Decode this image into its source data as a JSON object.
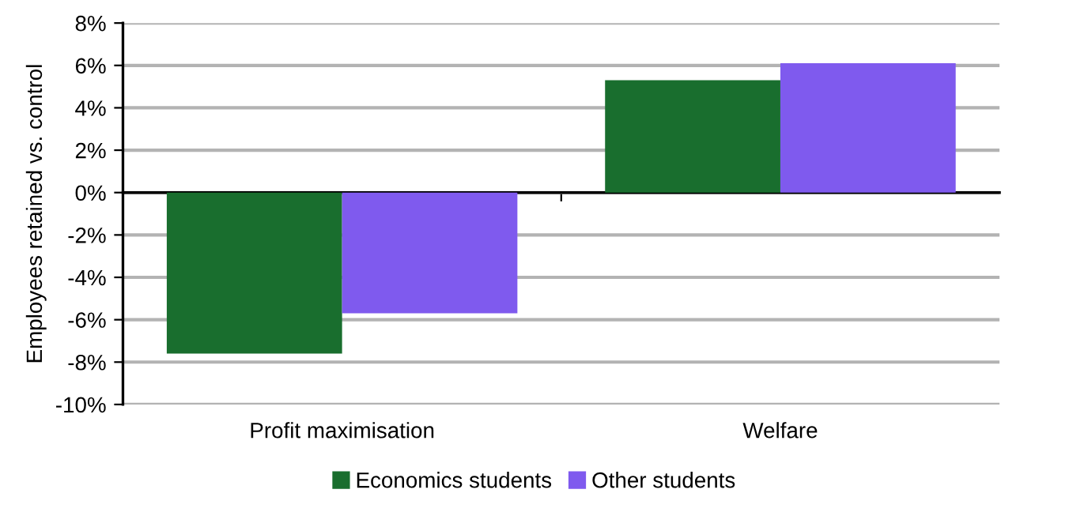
{
  "chart_data": {
    "type": "bar",
    "ylabel": "Employees retained vs. control",
    "categories": [
      "Profit maximisation",
      "Welfare"
    ],
    "series": [
      {
        "name": "Economics students",
        "color": "#196e2e",
        "values": [
          -7.6,
          5.3
        ]
      },
      {
        "name": "Other students",
        "color": "#7f5aee",
        "values": [
          -5.7,
          6.1
        ]
      }
    ],
    "ylim": [
      -10,
      8
    ],
    "yticks": [
      {
        "value": -10,
        "label": "-10%"
      },
      {
        "value": -8,
        "label": "-8%"
      },
      {
        "value": -6,
        "label": "-6%"
      },
      {
        "value": -4,
        "label": "-4%"
      },
      {
        "value": -2,
        "label": "-2%"
      },
      {
        "value": 0,
        "label": "0%"
      },
      {
        "value": 2,
        "label": "2%"
      },
      {
        "value": 4,
        "label": "4%"
      },
      {
        "value": 6,
        "label": "6%"
      },
      {
        "value": 8,
        "label": "8%"
      }
    ],
    "grid": "y",
    "legend": "bottom"
  }
}
